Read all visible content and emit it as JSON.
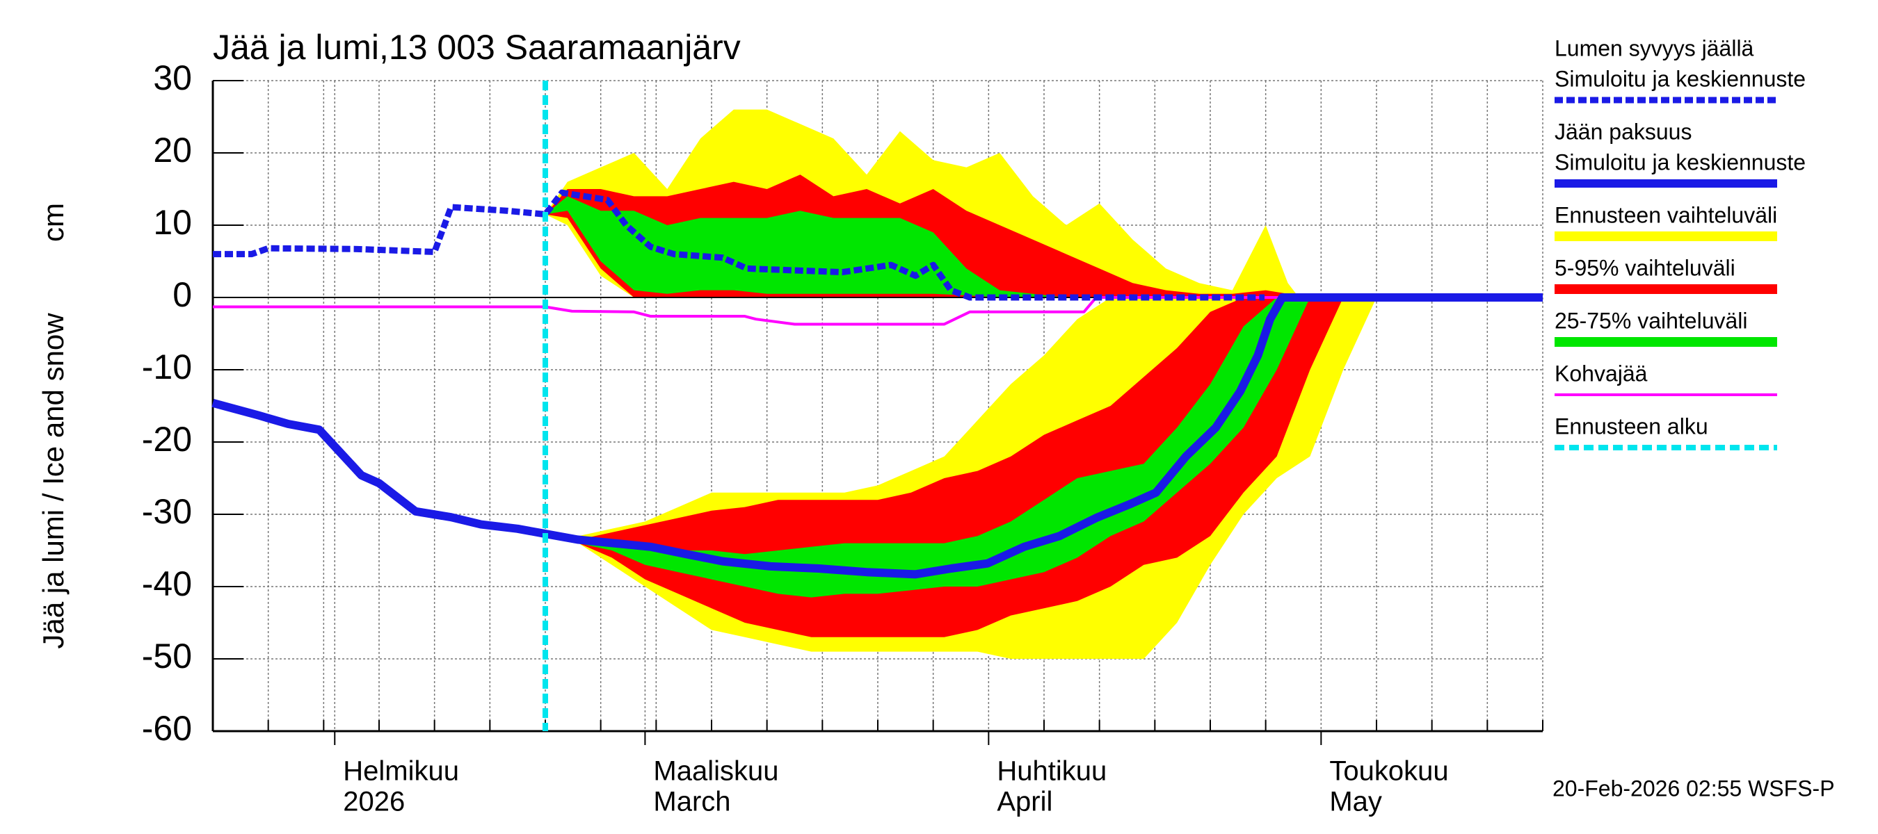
{
  "chart_data": {
    "type": "line",
    "title": "Jää ja lumi,13 003 Saaramaanjärv",
    "y_label": "Jää ja lumi / Ice and snow",
    "y_unit": "cm",
    "footer": "20-Feb-2026 02:55 WSFS-P",
    "xlim": [
      20,
      140
    ],
    "xticks": [
      {
        "value": 31,
        "label": "Helmikuu",
        "label2": "2026"
      },
      {
        "value": 59,
        "label": "Maaliskuu",
        "label2": "March"
      },
      {
        "value": 90,
        "label": "Huhtikuu",
        "label2": "April"
      },
      {
        "value": 120,
        "label": "Toukokuu",
        "label2": "May"
      }
    ],
    "xminor": [
      25,
      30,
      35,
      40,
      45,
      50,
      55,
      60,
      65,
      70,
      75,
      80,
      85,
      95,
      100,
      105,
      110,
      115,
      125,
      130,
      135,
      140
    ],
    "ylim": [
      -60,
      30
    ],
    "yticks": [
      -60,
      -50,
      -40,
      -30,
      -20,
      -10,
      0,
      10,
      20,
      30
    ],
    "grid": true,
    "legend": "outside-right",
    "series": [
      {
        "name": "Lumen syvyys jäällä",
        "name2": "Simuloitu ja keskiennuste",
        "kind": "line",
        "dashed": true,
        "color": "#1a1ae6",
        "x": [
          20,
          23.5,
          25,
          33,
          40,
          41.5,
          46.5,
          50,
          51.5,
          55.6,
          57.3,
          59.5,
          61.6,
          66,
          68.2,
          76.8,
          81.2,
          83.4,
          85,
          86.6,
          88.3,
          114.9
        ],
        "values": [
          6,
          6,
          6.8,
          6.7,
          6.3,
          12.5,
          12,
          11.5,
          14.5,
          13.5,
          10,
          7,
          6,
          5.5,
          4,
          3.5,
          4.5,
          3,
          4.5,
          1,
          0,
          0
        ]
      },
      {
        "name": "Jään paksuus",
        "name2": "Simuloitu ja keskiennuste",
        "kind": "line",
        "dashed": false,
        "color": "#1a1ae6",
        "x": [
          20,
          24.1,
          26.8,
          29.6,
          33.4,
          35,
          38.3,
          41.5,
          44.2,
          47.5,
          50,
          52.9,
          56.2,
          59.5,
          62.7,
          66,
          70.3,
          74.7,
          79,
          83.4,
          86.6,
          89.9,
          93.2,
          96.4,
          99.7,
          102.9,
          105.1,
          107.8,
          110.5,
          112.7,
          114.3,
          115.4,
          116.5,
          140
        ],
        "values": [
          -14.6,
          -16.3,
          -17.5,
          -18.3,
          -24.6,
          -25.7,
          -29.6,
          -30.4,
          -31.4,
          -32,
          -32.7,
          -33.5,
          -34,
          -34.5,
          -35.5,
          -36.5,
          -37.2,
          -37.5,
          -38,
          -38.3,
          -37.5,
          -36.8,
          -34.5,
          -33,
          -30.5,
          -28.5,
          -27,
          -22,
          -18,
          -13,
          -8,
          -3,
          0,
          0
        ]
      },
      {
        "name": "Ennusteen vaihteluväli",
        "kind": "band",
        "color": "#ffff00",
        "parts": [
          {
            "x": [
              50,
              52,
              55,
              58,
              61,
              64,
              67,
              70,
              73,
              76,
              79,
              82,
              85,
              88,
              91,
              94,
              97,
              100,
              103,
              106,
              109,
              112,
              115,
              117,
              118
            ],
            "low": [
              11.5,
              10,
              3,
              0,
              0,
              0,
              0,
              0,
              0,
              0,
              0,
              0,
              0,
              0,
              0,
              0,
              0,
              0,
              0,
              0,
              0,
              0,
              0,
              0,
              0
            ],
            "high": [
              11.5,
              16,
              18,
              20,
              15,
              22,
              26,
              26,
              24,
              22,
              17,
              23,
              19,
              18,
              20,
              14,
              10,
              13,
              8,
              4,
              2,
              1,
              10,
              2,
              0
            ]
          },
          {
            "x": [
              50,
              53,
              56,
              59,
              62,
              65,
              68,
              71,
              74,
              77,
              80,
              83,
              86,
              89,
              92,
              95,
              98,
              101,
              104,
              107,
              110,
              113,
              116,
              119,
              122,
              125
            ],
            "low": [
              -32.7,
              -34,
              -37,
              -40,
              -43,
              -46,
              -47,
              -48,
              -49,
              -49,
              -49,
              -49,
              -49,
              -49,
              -50,
              -50,
              -50,
              -50,
              -50,
              -45,
              -37,
              -30,
              -25,
              -22,
              -10,
              0
            ],
            "high": [
              -32.7,
              -33,
              -32,
              -31,
              -29,
              -27,
              -27,
              -27,
              -27,
              -27,
              -26,
              -24,
              -22,
              -17,
              -12,
              -8,
              -3,
              0,
              0,
              0,
              0,
              0,
              0,
              0,
              0,
              0
            ]
          }
        ]
      },
      {
        "name": "5-95% vaihteluväli",
        "kind": "band",
        "color": "#ff0000",
        "parts": [
          {
            "x": [
              50,
              52,
              55,
              58,
              61,
              64,
              67,
              70,
              73,
              76,
              79,
              82,
              85,
              88,
              91,
              94,
              97,
              100,
              103,
              106,
              109,
              112,
              115,
              117,
              118
            ],
            "low": [
              11.5,
              11,
              4,
              0,
              0,
              0,
              0,
              0,
              0,
              0,
              0,
              0,
              0,
              0,
              0,
              0,
              0,
              0,
              0,
              0,
              0,
              0,
              0,
              0,
              0
            ],
            "high": [
              11.5,
              15,
              15,
              14,
              14,
              15,
              16,
              15,
              17,
              14,
              15,
              13,
              15,
              12,
              10,
              8,
              6,
              4,
              2,
              1,
              0.5,
              0.5,
              1,
              0.5,
              0
            ]
          },
          {
            "x": [
              50,
              53,
              56,
              59,
              62,
              65,
              68,
              71,
              74,
              77,
              80,
              83,
              86,
              89,
              92,
              95,
              98,
              101,
              104,
              107,
              110,
              113,
              116,
              119,
              122,
              125
            ],
            "low": [
              -32.7,
              -34,
              -36,
              -39,
              -41,
              -43,
              -45,
              -46,
              -47,
              -47,
              -47,
              -47,
              -47,
              -46,
              -44,
              -43,
              -42,
              -40,
              -37,
              -36,
              -33,
              -27,
              -22,
              -10,
              0,
              0
            ],
            "high": [
              -32.7,
              -33.5,
              -32.5,
              -31.5,
              -30.5,
              -29.5,
              -29,
              -28,
              -28,
              -28,
              -28,
              -27,
              -25,
              -24,
              -22,
              -19,
              -17,
              -15,
              -11,
              -7,
              -2,
              0,
              0,
              0,
              0,
              0
            ]
          }
        ]
      },
      {
        "name": "25-75% vaihteluväli",
        "kind": "band",
        "color": "#00e600",
        "parts": [
          {
            "x": [
              50,
              52,
              55,
              58,
              61,
              64,
              67,
              70,
              73,
              76,
              79,
              82,
              85,
              88,
              91,
              94,
              97,
              100,
              103,
              106,
              109,
              112,
              115,
              117,
              118
            ],
            "low": [
              11.5,
              12,
              5,
              1,
              0.5,
              1,
              1,
              0.5,
              0.5,
              0.5,
              0.5,
              0.5,
              0.5,
              0.3,
              0,
              0,
              0,
              0,
              0,
              0,
              0,
              0,
              0,
              0,
              0
            ],
            "high": [
              11.5,
              14,
              12,
              12,
              10,
              11,
              11,
              11,
              12,
              11,
              11,
              11,
              9,
              4,
              1,
              0.5,
              0,
              0,
              0,
              0,
              0,
              0,
              0,
              0,
              0
            ]
          },
          {
            "x": [
              50,
              53,
              56,
              59,
              62,
              65,
              68,
              71,
              74,
              77,
              80,
              83,
              86,
              89,
              92,
              95,
              98,
              101,
              104,
              107,
              110,
              113,
              116,
              119,
              122,
              125
            ],
            "low": [
              -32.7,
              -34,
              -35,
              -37,
              -38,
              -39,
              -40,
              -41,
              -41.5,
              -41,
              -41,
              -40.5,
              -40,
              -40,
              -39,
              -38,
              -36,
              -33,
              -31,
              -27,
              -23,
              -18,
              -10,
              0,
              0,
              0
            ],
            "high": [
              -32.7,
              -33.5,
              -34,
              -34.5,
              -35,
              -35,
              -35.5,
              -35,
              -34.5,
              -34,
              -34,
              -34,
              -34,
              -33,
              -31,
              -28,
              -25,
              -24,
              -23,
              -18,
              -12,
              -4,
              0,
              0,
              0,
              0
            ]
          }
        ]
      },
      {
        "name": "Kohvajää",
        "kind": "line",
        "dashed": false,
        "color": "#ff00ff",
        "x": [
          20,
          50,
          52.4,
          58,
          59.5,
          68,
          69,
          72.5,
          86,
          88.3,
          98.6,
          99.7,
          140
        ],
        "values": [
          -1.3,
          -1.3,
          -1.9,
          -2,
          -2.6,
          -2.6,
          -3,
          -3.7,
          -3.7,
          -2,
          -2,
          0,
          0
        ]
      }
    ],
    "forecast_start": {
      "name": "Ennusteen alku",
      "x": 50,
      "color": "#00e5ee"
    }
  }
}
